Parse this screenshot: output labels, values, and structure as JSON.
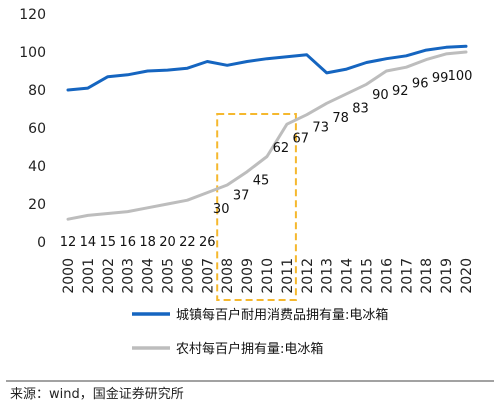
{
  "chart_data": {
    "type": "line",
    "title": "",
    "xlabel": "",
    "ylabel": "",
    "ylim": [
      0,
      120
    ],
    "yticks": [
      0,
      20,
      40,
      60,
      80,
      100,
      120
    ],
    "grid": false,
    "legend_position": "bottom",
    "x": [
      "2000",
      "2001",
      "2002",
      "2003",
      "2004",
      "2005",
      "2006",
      "2007",
      "2008",
      "2009",
      "2010",
      "2011",
      "2012",
      "2013",
      "2014",
      "2015",
      "2016",
      "2017",
      "2018",
      "2019",
      "2020"
    ],
    "series": [
      {
        "name": "城镇每百户耐用消费品拥有量:电冰箱",
        "color": "#1565c0",
        "values": [
          80,
          81,
          87,
          88,
          90,
          90.5,
          91.5,
          95,
          93,
          95,
          96.5,
          97.5,
          98.5,
          89,
          91,
          94.5,
          96.5,
          98,
          101,
          102.5,
          103
        ]
      },
      {
        "name": "农村每百户拥有量:电冰箱",
        "color": "#bdbdbd",
        "values": [
          12,
          14,
          15,
          16,
          18,
          20,
          22,
          26,
          30,
          37,
          45,
          62,
          67,
          73,
          78,
          83,
          90,
          92,
          96,
          99,
          100
        ],
        "labels": [
          "12",
          "14",
          "15",
          "16",
          "18",
          "20",
          "22",
          "26",
          "30",
          "37",
          "45",
          "62",
          "67",
          "73",
          "78",
          "83",
          "90",
          "92",
          "96",
          "99",
          "100"
        ]
      }
    ],
    "highlight_range": [
      "2008",
      "2011"
    ],
    "highlight_color": "#f5b82e"
  },
  "source_note": "来源：wind，国金证券研究所"
}
